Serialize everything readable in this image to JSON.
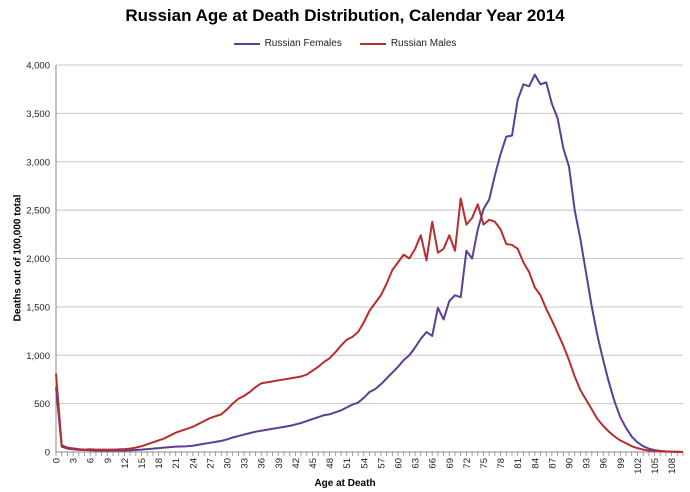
{
  "chart_data": {
    "type": "line",
    "title": "Russian Age at Death Distribution, Calendar Year 2014",
    "xlabel": "Age at Death",
    "ylabel": "Deaths out of 100,000 total",
    "xlim": [
      0,
      110
    ],
    "ylim": [
      0,
      4000
    ],
    "yticks": [
      0,
      500,
      1000,
      1500,
      2000,
      2500,
      3000,
      3500,
      4000
    ],
    "ytick_labels": [
      "0",
      "500",
      "1,000",
      "1,500",
      "2,000",
      "2,500",
      "3,000",
      "3,500",
      "4,000"
    ],
    "xticks": [
      0,
      3,
      6,
      9,
      12,
      15,
      18,
      21,
      24,
      27,
      30,
      33,
      36,
      39,
      42,
      45,
      48,
      51,
      54,
      57,
      60,
      63,
      66,
      69,
      72,
      75,
      78,
      81,
      84,
      87,
      90,
      93,
      96,
      99,
      102,
      105,
      108
    ],
    "grid": "horizontal",
    "legend": "top-center",
    "x": [
      0,
      1,
      2,
      3,
      4,
      5,
      6,
      7,
      8,
      9,
      10,
      11,
      12,
      13,
      14,
      15,
      16,
      17,
      18,
      19,
      20,
      21,
      22,
      23,
      24,
      25,
      26,
      27,
      28,
      29,
      30,
      31,
      32,
      33,
      34,
      35,
      36,
      37,
      38,
      39,
      40,
      41,
      42,
      43,
      44,
      45,
      46,
      47,
      48,
      49,
      50,
      51,
      52,
      53,
      54,
      55,
      56,
      57,
      58,
      59,
      60,
      61,
      62,
      63,
      64,
      65,
      66,
      67,
      68,
      69,
      70,
      71,
      72,
      73,
      74,
      75,
      76,
      77,
      78,
      79,
      80,
      81,
      82,
      83,
      84,
      85,
      86,
      87,
      88,
      89,
      90,
      91,
      92,
      93,
      94,
      95,
      96,
      97,
      98,
      99,
      100,
      101,
      102,
      103,
      104,
      105,
      106,
      107,
      108,
      109,
      110
    ],
    "series": [
      {
        "name": "Russian Females",
        "color": "#5b3f94",
        "values": [
          670,
          55,
          35,
          28,
          22,
          20,
          18,
          16,
          15,
          15,
          15,
          15,
          16,
          17,
          20,
          24,
          30,
          35,
          40,
          45,
          50,
          55,
          57,
          60,
          65,
          75,
          85,
          95,
          105,
          115,
          130,
          150,
          165,
          180,
          195,
          210,
          220,
          230,
          240,
          250,
          260,
          270,
          285,
          300,
          320,
          340,
          360,
          380,
          390,
          410,
          430,
          460,
          490,
          510,
          560,
          620,
          650,
          700,
          760,
          820,
          880,
          950,
          1000,
          1080,
          1170,
          1240,
          1200,
          1490,
          1370,
          1560,
          1620,
          1600,
          2080,
          2000,
          2300,
          2510,
          2610,
          2860,
          3080,
          3260,
          3270,
          3640,
          3800,
          3780,
          3900,
          3800,
          3820,
          3600,
          3450,
          3140,
          2950,
          2500,
          2200,
          1850,
          1500,
          1200,
          950,
          720,
          520,
          360,
          250,
          160,
          100,
          60,
          35,
          20,
          12,
          7,
          4,
          2,
          1
        ]
      },
      {
        "name": "Russian Males",
        "color": "#b82d2d",
        "values": [
          810,
          70,
          45,
          38,
          30,
          25,
          28,
          25,
          24,
          24,
          25,
          27,
          30,
          35,
          45,
          60,
          80,
          100,
          120,
          140,
          170,
          200,
          220,
          240,
          260,
          290,
          320,
          350,
          370,
          390,
          440,
          500,
          550,
          580,
          620,
          670,
          710,
          720,
          730,
          740,
          750,
          760,
          770,
          780,
          800,
          840,
          880,
          930,
          970,
          1030,
          1100,
          1160,
          1190,
          1240,
          1340,
          1460,
          1540,
          1620,
          1740,
          1880,
          1960,
          2040,
          2000,
          2100,
          2240,
          1980,
          2380,
          2060,
          2100,
          2240,
          2080,
          2620,
          2350,
          2420,
          2560,
          2350,
          2400,
          2380,
          2300,
          2150,
          2140,
          2100,
          1960,
          1860,
          1700,
          1620,
          1480,
          1360,
          1230,
          1100,
          950,
          780,
          640,
          540,
          440,
          340,
          270,
          210,
          160,
          120,
          90,
          60,
          40,
          25,
          15,
          10,
          6,
          4,
          2,
          1,
          0
        ]
      }
    ]
  }
}
